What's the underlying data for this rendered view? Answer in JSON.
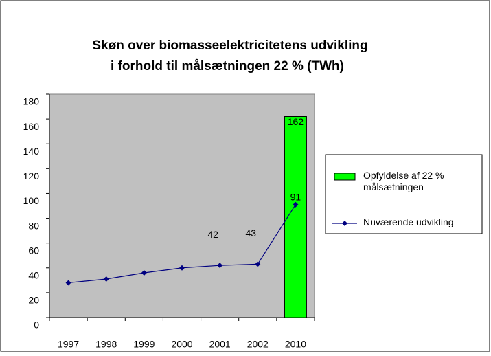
{
  "chart_data": {
    "type": "bar+line",
    "title": [
      "Skøn over biomasseelektricitetens udvikling",
      "i forhold til målsætningen 22 % (TWh)"
    ],
    "categories": [
      "1997",
      "1998",
      "1999",
      "2000",
      "2001",
      "2002",
      "2010"
    ],
    "series": [
      {
        "name": "Opfyldelse af 22 % målsætningen",
        "type": "bar",
        "color": "#00ff00",
        "values": [
          null,
          null,
          null,
          null,
          null,
          null,
          162
        ],
        "value_labels": [
          null,
          null,
          null,
          null,
          null,
          null,
          "162"
        ]
      },
      {
        "name": "Nuværende udvikling",
        "type": "line",
        "color": "#000080",
        "values": [
          28,
          31,
          36,
          40,
          42,
          43,
          91
        ],
        "value_labels": [
          null,
          null,
          null,
          null,
          "42",
          "43",
          "91"
        ]
      }
    ],
    "ylim": [
      0,
      180
    ],
    "yticks": [
      0,
      20,
      40,
      60,
      80,
      100,
      120,
      140,
      160,
      180
    ],
    "plot_background": "#c0c0c0",
    "legend": "right"
  }
}
